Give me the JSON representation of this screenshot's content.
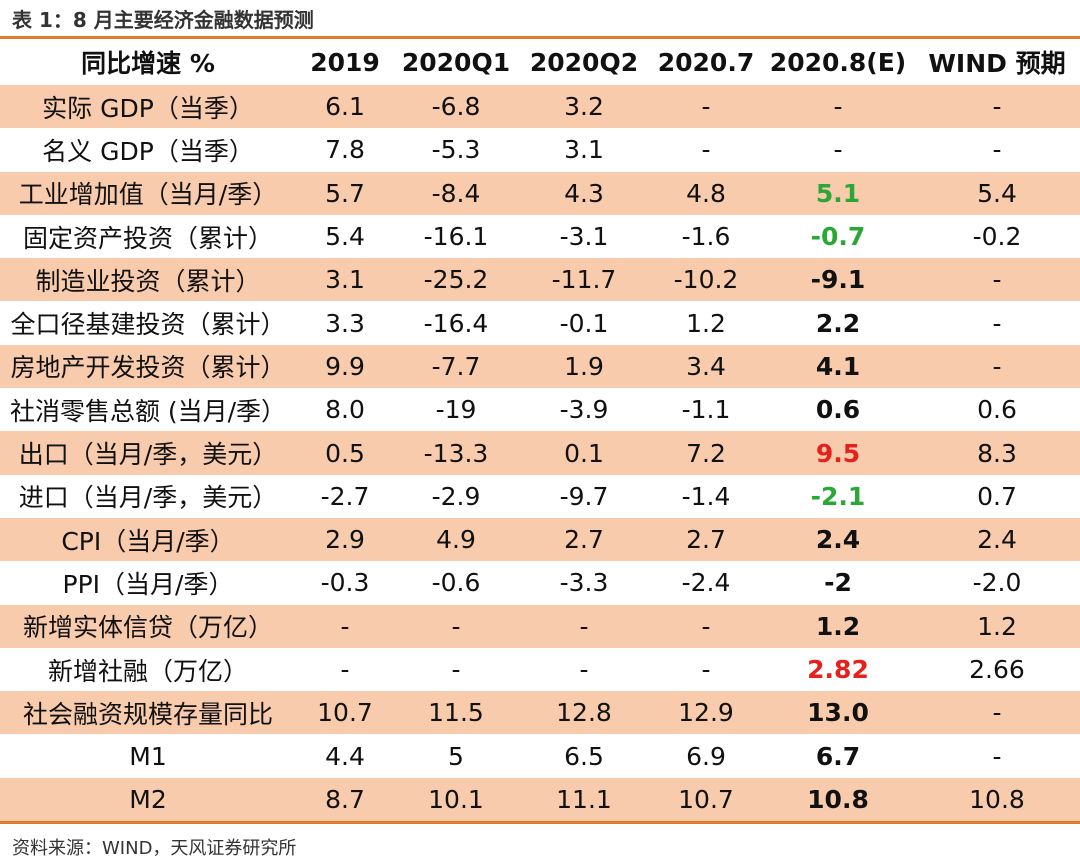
{
  "caption": "表 1：8 月主要经济金融数据预测",
  "header": [
    "同比增速 %",
    "2019",
    "2020Q1",
    "2020Q2",
    "2020.7",
    "2020.8(E)",
    "WIND 预期"
  ],
  "rows": [
    {
      "cells": [
        "实际 GDP（当季）",
        "6.1",
        "-6.8",
        "3.2",
        "-",
        "-",
        "-"
      ],
      "est_style": "normal"
    },
    {
      "cells": [
        "名义 GDP（当季）",
        "7.8",
        "-5.3",
        "3.1",
        "-",
        "-",
        "-"
      ],
      "est_style": "normal"
    },
    {
      "cells": [
        "工业增加值（当月/季）",
        "5.7",
        "-8.4",
        "4.3",
        "4.8",
        "5.1",
        "5.4"
      ],
      "est_style": "green"
    },
    {
      "cells": [
        "固定资产投资（累计）",
        "5.4",
        "-16.1",
        "-3.1",
        "-1.6",
        "-0.7",
        "-0.2"
      ],
      "est_style": "green"
    },
    {
      "cells": [
        "制造业投资（累计）",
        "3.1",
        "-25.2",
        "-11.7",
        "-10.2",
        "-9.1",
        "-"
      ],
      "est_style": "bold"
    },
    {
      "cells": [
        "全口径基建投资（累计）",
        "3.3",
        "-16.4",
        "-0.1",
        "1.2",
        "2.2",
        "-"
      ],
      "est_style": "bold"
    },
    {
      "cells": [
        "房地产开发投资（累计）",
        "9.9",
        "-7.7",
        "1.9",
        "3.4",
        "4.1",
        "-"
      ],
      "est_style": "bold"
    },
    {
      "cells": [
        "社消零售总额 (当月/季）",
        "8.0",
        "-19",
        "-3.9",
        "-1.1",
        "0.6",
        "0.6"
      ],
      "est_style": "bold"
    },
    {
      "cells": [
        "出口（当月/季，美元）",
        "0.5",
        "-13.3",
        "0.1",
        "7.2",
        "9.5",
        "8.3"
      ],
      "est_style": "red"
    },
    {
      "cells": [
        "进口（当月/季，美元）",
        "-2.7",
        "-2.9",
        "-9.7",
        "-1.4",
        "-2.1",
        "0.7"
      ],
      "est_style": "green"
    },
    {
      "cells": [
        "CPI（当月/季）",
        "2.9",
        "4.9",
        "2.7",
        "2.7",
        "2.4",
        "2.4"
      ],
      "est_style": "bold"
    },
    {
      "cells": [
        "PPI（当月/季）",
        "-0.3",
        "-0.6",
        "-3.3",
        "-2.4",
        "-2",
        "-2.0"
      ],
      "est_style": "bold"
    },
    {
      "cells": [
        "新增实体信贷（万亿）",
        "-",
        "-",
        "-",
        "-",
        "1.2",
        "1.2"
      ],
      "est_style": "bold"
    },
    {
      "cells": [
        "新增社融（万亿）",
        "-",
        "-",
        "-",
        "-",
        "2.82",
        "2.66"
      ],
      "est_style": "red"
    },
    {
      "cells": [
        "社会融资规模存量同比",
        "10.7",
        "11.5",
        "12.8",
        "12.9",
        "13.0",
        "-"
      ],
      "est_style": "bold"
    },
    {
      "cells": [
        "M1",
        "4.4",
        "5",
        "6.5",
        "6.9",
        "6.7",
        "-"
      ],
      "est_style": "bold"
    },
    {
      "cells": [
        "M2",
        "8.7",
        "10.1",
        "11.1",
        "10.7",
        "10.8",
        "10.8"
      ],
      "est_style": "bold"
    }
  ],
  "source": "资料来源：WIND，天风证券研究所",
  "colors": {
    "accent": "#e07a2f",
    "shade": "#f8cbad",
    "green": "#2aa836",
    "red": "#e8201c"
  }
}
